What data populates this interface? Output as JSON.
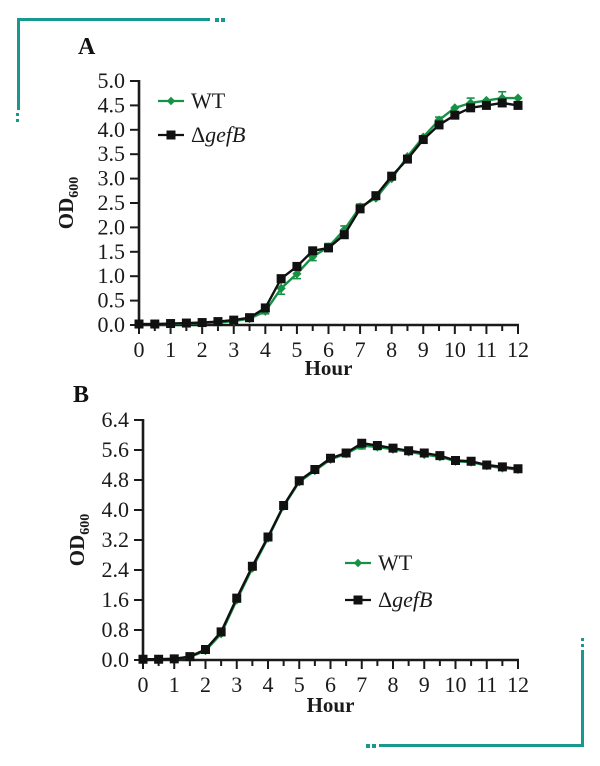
{
  "page": {
    "background": "#ffffff",
    "accent_teal": "#18998f",
    "text_color": "#1a1a1a"
  },
  "chart_data": [
    {
      "panel_label": "A",
      "type": "line",
      "title": "",
      "xlabel": "Hour",
      "ylabel_main": "OD",
      "ylabel_sub": "600",
      "xlim": [
        0,
        12
      ],
      "ylim": [
        0,
        5
      ],
      "xtick_minor_step": 0.5,
      "xticks": [
        0,
        1,
        2,
        3,
        4,
        5,
        6,
        7,
        8,
        9,
        10,
        11,
        12
      ],
      "yticks": [
        "0.0",
        "0.5",
        "1.0",
        "1.5",
        "2.0",
        "2.5",
        "3.0",
        "3.5",
        "4.0",
        "4.5",
        "5.0"
      ],
      "grid": false,
      "legend_position": "upper-left-inside",
      "x": [
        0,
        0.5,
        1,
        1.5,
        2,
        2.5,
        3,
        3.5,
        4,
        4.5,
        5,
        5.5,
        6,
        6.5,
        7,
        7.5,
        8,
        8.5,
        9,
        9.5,
        10,
        10.5,
        11,
        11.5,
        12
      ],
      "series": [
        {
          "name": "WT",
          "marker": "diamond",
          "color": "#169245",
          "values": [
            0.02,
            0.02,
            0.02,
            0.03,
            0.04,
            0.05,
            0.08,
            0.13,
            0.28,
            0.75,
            1.05,
            1.4,
            1.6,
            1.95,
            2.42,
            2.6,
            3.0,
            3.45,
            3.85,
            4.2,
            4.45,
            4.55,
            4.6,
            4.65,
            4.65
          ],
          "errors": [
            0,
            0,
            0,
            0,
            0,
            0,
            0,
            0,
            0.05,
            0.12,
            0.1,
            0.08,
            0.07,
            0.08,
            0.06,
            0,
            0,
            0,
            0,
            0.06,
            0,
            0.1,
            0,
            0.13,
            0
          ]
        },
        {
          "name": "ΔgefB",
          "name_prefix": "Δ",
          "name_italic": "gefB",
          "marker": "square",
          "color": "#111111",
          "values": [
            0.02,
            0.02,
            0.03,
            0.04,
            0.05,
            0.07,
            0.1,
            0.15,
            0.35,
            0.95,
            1.2,
            1.52,
            1.58,
            1.85,
            2.38,
            2.65,
            3.05,
            3.4,
            3.8,
            4.1,
            4.3,
            4.45,
            4.5,
            4.55,
            4.5
          ],
          "errors": [
            0,
            0,
            0,
            0,
            0,
            0,
            0,
            0,
            0,
            0,
            0,
            0,
            0,
            0,
            0,
            0,
            0,
            0,
            0,
            0,
            0,
            0,
            0,
            0,
            0
          ]
        }
      ]
    },
    {
      "panel_label": "B",
      "type": "line",
      "title": "",
      "xlabel": "Hour",
      "ylabel_main": "OD",
      "ylabel_sub": "600",
      "xlim": [
        0,
        12
      ],
      "ylim": [
        0,
        6.4
      ],
      "xtick_minor_step": 0.5,
      "xticks": [
        0,
        1,
        2,
        3,
        4,
        5,
        6,
        7,
        8,
        9,
        10,
        11,
        12
      ],
      "yticks": [
        "0.0",
        "0.8",
        "1.6",
        "2.4",
        "3.2",
        "4.0",
        "4.8",
        "5.6",
        "6.4"
      ],
      "grid": false,
      "legend_position": "lower-right-inside",
      "x": [
        0,
        0.5,
        1,
        1.5,
        2,
        2.5,
        3,
        3.5,
        4,
        4.5,
        5,
        5.5,
        6,
        6.5,
        7,
        7.5,
        8,
        8.5,
        9,
        9.5,
        10,
        10.5,
        11,
        11.5,
        12
      ],
      "series": [
        {
          "name": "WT",
          "marker": "diamond",
          "color": "#169245",
          "values": [
            0.02,
            0.02,
            0.03,
            0.08,
            0.25,
            0.7,
            1.6,
            2.45,
            3.25,
            4.1,
            4.75,
            5.05,
            5.35,
            5.5,
            5.72,
            5.68,
            5.62,
            5.55,
            5.48,
            5.42,
            5.3,
            5.28,
            5.18,
            5.12,
            5.08
          ],
          "errors": [
            0,
            0,
            0,
            0,
            0,
            0.05,
            0.06,
            0,
            0,
            0,
            0,
            0,
            0,
            0.05,
            0.09,
            0.07,
            0.05,
            0,
            0.05,
            0,
            0.06,
            0,
            0.05,
            0,
            0
          ]
        },
        {
          "name": "ΔgefB",
          "name_prefix": "Δ",
          "name_italic": "gefB",
          "marker": "square",
          "color": "#111111",
          "values": [
            0.02,
            0.02,
            0.03,
            0.09,
            0.28,
            0.75,
            1.65,
            2.5,
            3.28,
            4.12,
            4.78,
            5.08,
            5.38,
            5.52,
            5.78,
            5.72,
            5.65,
            5.58,
            5.52,
            5.45,
            5.32,
            5.3,
            5.2,
            5.15,
            5.1
          ],
          "errors": [
            0,
            0,
            0,
            0,
            0,
            0,
            0,
            0,
            0,
            0,
            0,
            0,
            0,
            0,
            0.06,
            0,
            0,
            0,
            0,
            0,
            0,
            0,
            0,
            0,
            0
          ]
        }
      ]
    }
  ]
}
